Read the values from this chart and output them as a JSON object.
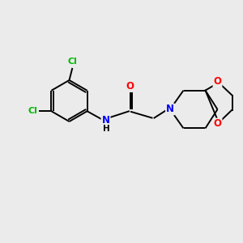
{
  "background_color": "#ebebeb",
  "bond_color": "#000000",
  "atom_colors": {
    "N": "#0000ff",
    "O": "#ff0000",
    "Cl": "#00bb00",
    "C": "#000000",
    "H": "#000000"
  },
  "figsize": [
    3.0,
    3.0
  ],
  "dpi": 100
}
